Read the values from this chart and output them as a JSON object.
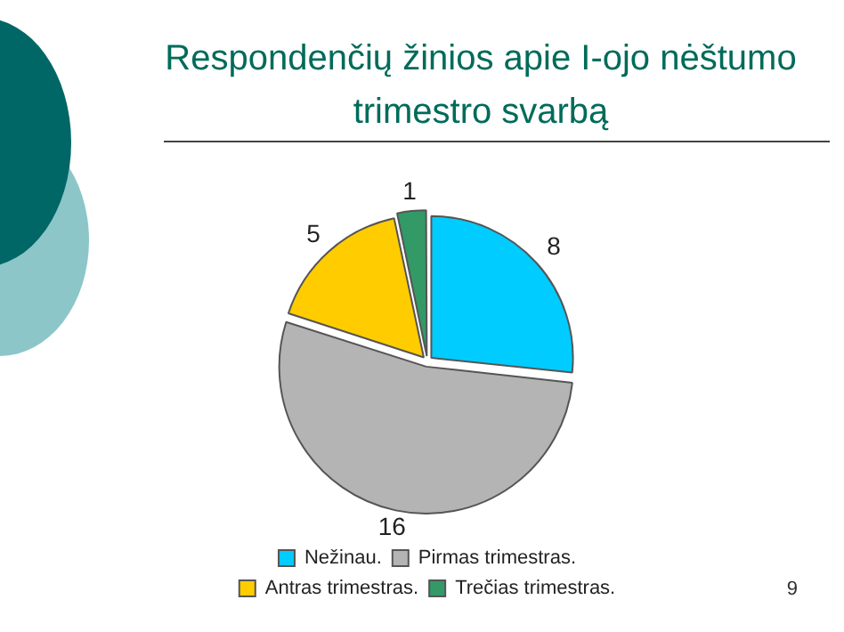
{
  "chart_data": {
    "type": "pie",
    "title": "Respondenčių žinios apie I-ojo nėštumo trimestro svarbą",
    "categories": [
      "Nežinau.",
      "Pirmas trimestras.",
      "Antras trimestras.",
      "Trečias trimestras."
    ],
    "values": [
      8,
      16,
      5,
      1
    ],
    "colors": [
      "#00ccff",
      "#b4b4b4",
      "#ffcc00",
      "#339966"
    ],
    "data_labels": true,
    "legend": "bottom",
    "annotations": [
      "9"
    ]
  }
}
